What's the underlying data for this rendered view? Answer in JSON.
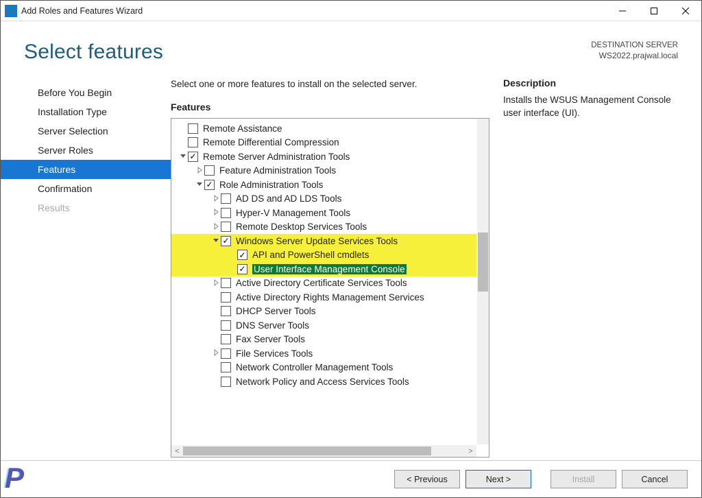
{
  "window": {
    "title": "Add Roles and Features Wizard"
  },
  "header": {
    "title": "Select features",
    "dest_label": "DESTINATION SERVER",
    "dest_value": "WS2022.prajwal.local"
  },
  "nav": {
    "items": [
      {
        "label": "Before You Begin",
        "state": "normal"
      },
      {
        "label": "Installation Type",
        "state": "normal"
      },
      {
        "label": "Server Selection",
        "state": "normal"
      },
      {
        "label": "Server Roles",
        "state": "normal"
      },
      {
        "label": "Features",
        "state": "active"
      },
      {
        "label": "Confirmation",
        "state": "normal"
      },
      {
        "label": "Results",
        "state": "inactive"
      }
    ]
  },
  "content": {
    "intro": "Select one or more features to install on the selected server.",
    "features_label": "Features",
    "description_label": "Description",
    "description_body": "Installs the WSUS Management Console user interface (UI).",
    "tree": [
      {
        "indent": 0,
        "expander": "blank",
        "checked": false,
        "label": "Remote Assistance"
      },
      {
        "indent": 0,
        "expander": "blank",
        "checked": false,
        "label": "Remote Differential Compression"
      },
      {
        "indent": 0,
        "expander": "open",
        "checked": true,
        "label": "Remote Server Administration Tools"
      },
      {
        "indent": 1,
        "expander": "closed",
        "checked": false,
        "label": "Feature Administration Tools"
      },
      {
        "indent": 1,
        "expander": "open",
        "checked": true,
        "label": "Role Administration Tools"
      },
      {
        "indent": 2,
        "expander": "closed",
        "checked": false,
        "label": "AD DS and AD LDS Tools"
      },
      {
        "indent": 2,
        "expander": "closed",
        "checked": false,
        "label": "Hyper-V Management Tools"
      },
      {
        "indent": 2,
        "expander": "closed",
        "checked": false,
        "label": "Remote Desktop Services Tools"
      },
      {
        "indent": 2,
        "expander": "open",
        "checked": true,
        "label": "Windows Server Update Services Tools",
        "highlight": true
      },
      {
        "indent": 3,
        "expander": "blank",
        "checked": true,
        "label": "API and PowerShell cmdlets",
        "highlight": true
      },
      {
        "indent": 3,
        "expander": "blank",
        "checked": true,
        "label": "User Interface Management Console",
        "highlight": true,
        "selected": true
      },
      {
        "indent": 2,
        "expander": "closed",
        "checked": false,
        "label": "Active Directory Certificate Services Tools"
      },
      {
        "indent": 2,
        "expander": "blank",
        "checked": false,
        "label": "Active Directory Rights Management Services"
      },
      {
        "indent": 2,
        "expander": "blank",
        "checked": false,
        "label": "DHCP Server Tools"
      },
      {
        "indent": 2,
        "expander": "blank",
        "checked": false,
        "label": "DNS Server Tools"
      },
      {
        "indent": 2,
        "expander": "blank",
        "checked": false,
        "label": "Fax Server Tools"
      },
      {
        "indent": 2,
        "expander": "closed",
        "checked": false,
        "label": "File Services Tools"
      },
      {
        "indent": 2,
        "expander": "blank",
        "checked": false,
        "label": "Network Controller Management Tools"
      },
      {
        "indent": 2,
        "expander": "blank",
        "checked": false,
        "label": "Network Policy and Access Services Tools"
      }
    ],
    "vscroll": {
      "thumb_top_pct": 35,
      "thumb_height_pct": 18
    }
  },
  "buttons": {
    "previous": "< Previous",
    "next": "Next >",
    "install": "Install",
    "cancel": "Cancel"
  },
  "watermark": "P",
  "icons": {
    "check": "✓",
    "triangle_right": "▷",
    "triangle_down": "◢"
  }
}
